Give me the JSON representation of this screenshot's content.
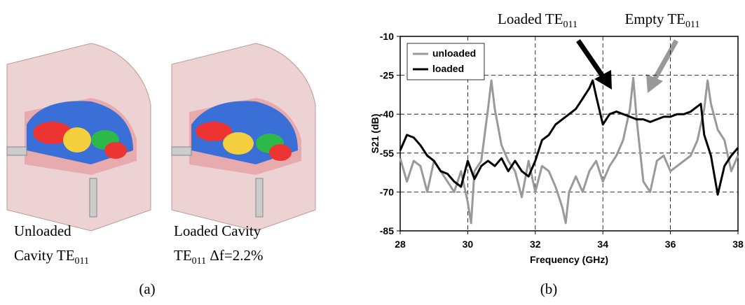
{
  "chart_data": {
    "type": "line",
    "xlabel": "Frequency (GHz)",
    "ylabel": "S21 (dB)",
    "xlim": [
      28,
      38
    ],
    "xticks": [
      28,
      30,
      32,
      34,
      36,
      38
    ],
    "ylim": [
      -85,
      -10
    ],
    "yticks": [
      -85,
      -70,
      -55,
      -40,
      -25,
      -10
    ],
    "grid": true,
    "legend": "top-left",
    "series": [
      {
        "name": "unloaded",
        "color": "#999999",
        "x": [
          28,
          28.2,
          28.4,
          28.6,
          28.8,
          29.0,
          29.2,
          29.4,
          29.6,
          29.8,
          30.0,
          30.1,
          30.2,
          30.4,
          30.6,
          30.7,
          30.8,
          31.0,
          31.2,
          31.4,
          31.6,
          31.8,
          32.0,
          32.2,
          32.4,
          32.6,
          32.8,
          32.9,
          33.0,
          33.2,
          33.4,
          33.6,
          33.8,
          34.0,
          34.2,
          34.4,
          34.6,
          34.8,
          34.9,
          35.0,
          35.2,
          35.4,
          35.6,
          35.8,
          36.0,
          36.2,
          36.4,
          36.6,
          36.8,
          37.0,
          37.1,
          37.2,
          37.4,
          37.6,
          37.8,
          38.0
        ],
        "values": [
          -57,
          -66,
          -58,
          -60,
          -70,
          -58,
          -62,
          -66,
          -70,
          -62,
          -74,
          -82,
          -62,
          -58,
          -38,
          -27,
          -38,
          -52,
          -58,
          -62,
          -72,
          -58,
          -70,
          -60,
          -62,
          -68,
          -76,
          -82,
          -70,
          -64,
          -70,
          -62,
          -58,
          -66,
          -60,
          -56,
          -50,
          -38,
          -26,
          -42,
          -66,
          -70,
          -58,
          -56,
          -62,
          -60,
          -58,
          -56,
          -50,
          -38,
          -27,
          -36,
          -46,
          -50,
          -62,
          -56
        ]
      },
      {
        "name": "loaded",
        "color": "#000000",
        "x": [
          28,
          28.2,
          28.4,
          28.6,
          28.8,
          29.0,
          29.2,
          29.4,
          29.6,
          29.8,
          30.0,
          30.2,
          30.4,
          30.6,
          30.8,
          31.0,
          31.2,
          31.4,
          31.6,
          31.8,
          32.0,
          32.2,
          32.4,
          32.6,
          32.8,
          33.0,
          33.2,
          33.4,
          33.6,
          33.7,
          33.8,
          34.0,
          34.2,
          34.4,
          34.6,
          34.8,
          35.0,
          35.2,
          35.4,
          35.6,
          35.8,
          36.0,
          36.2,
          36.4,
          36.6,
          36.8,
          36.9,
          37.0,
          37.2,
          37.4,
          37.6,
          37.8,
          38.0
        ],
        "values": [
          -54,
          -48,
          -49,
          -52,
          -56,
          -58,
          -62,
          -63,
          -66,
          -68,
          -58,
          -65,
          -60,
          -58,
          -60,
          -57,
          -62,
          -58,
          -62,
          -64,
          -58,
          -50,
          -48,
          -44,
          -42,
          -40,
          -38,
          -34,
          -30,
          -27,
          -33,
          -44,
          -40,
          -39,
          -40,
          -41,
          -42,
          -42,
          -43,
          -42,
          -41,
          -41,
          -40,
          -40,
          -39,
          -37,
          -36,
          -48,
          -56,
          -71,
          -60,
          -56,
          -53
        ]
      }
    ],
    "annotations": [
      {
        "text": "Loaded TE",
        "subscript": "011"
      },
      {
        "text": "Empty TE",
        "subscript": "011"
      }
    ]
  },
  "figure": {
    "captions": [
      {
        "lines": [
          "Unloaded",
          "Cavity TE"
        ],
        "subscript": "011",
        "after": ""
      },
      {
        "lines": [
          "Loaded Cavity",
          "TE"
        ],
        "subscript": "011",
        "after": " Δf=2.2%"
      }
    ],
    "panel_labels": [
      "(a)",
      "(b)"
    ]
  }
}
